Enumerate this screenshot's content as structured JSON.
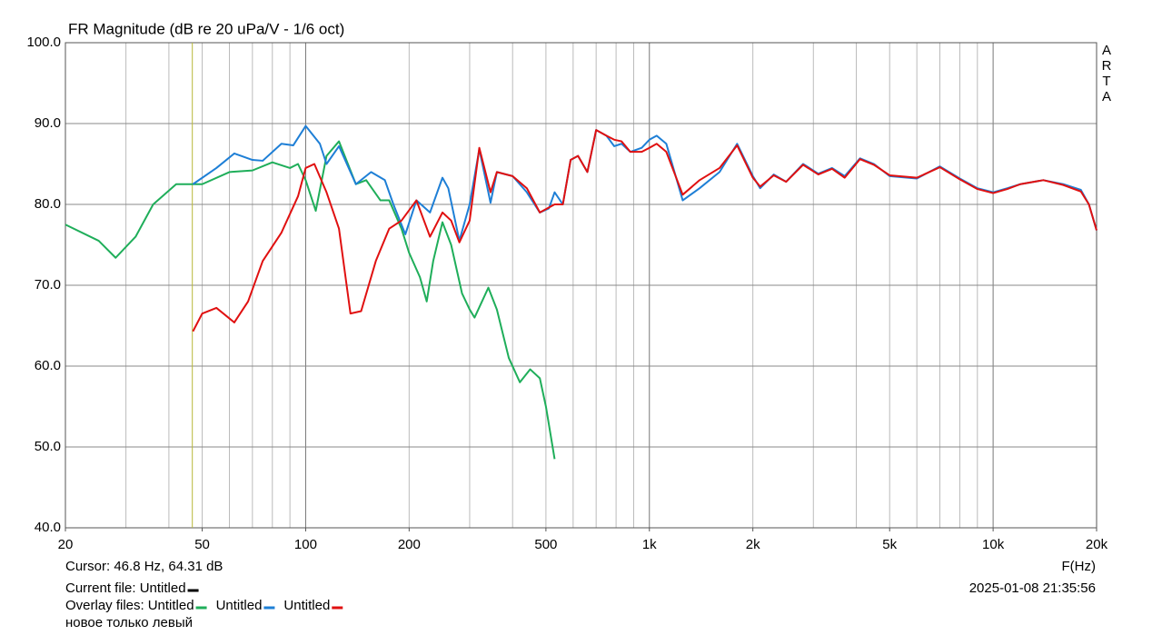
{
  "chart_data": {
    "type": "line",
    "title": "FR Magnitude (dB re 20 uPa/V - 1/6 oct)",
    "x_label": "F(Hz)",
    "side_label": [
      "A",
      "R",
      "T",
      "A"
    ],
    "xscale": "log",
    "grid": true,
    "xlim": [
      20,
      20000
    ],
    "ylim": [
      40,
      100
    ],
    "xticks": [
      20,
      50,
      100,
      200,
      500,
      {
        "value": 1000,
        "label": "1k"
      },
      {
        "value": 2000,
        "label": "2k"
      },
      {
        "value": 5000,
        "label": "5k"
      },
      {
        "value": 10000,
        "label": "10k"
      },
      {
        "value": 20000,
        "label": "20k"
      }
    ],
    "yticks": [
      {
        "value": 40,
        "label": "40.0"
      },
      {
        "value": 50,
        "label": "50.0"
      },
      {
        "value": 60,
        "label": "60.0"
      },
      {
        "value": 70,
        "label": "70.0"
      },
      {
        "value": 80,
        "label": "80.0"
      },
      {
        "value": 90,
        "label": "90.0"
      },
      {
        "value": 100,
        "label": "100.0"
      }
    ],
    "cursor": {
      "label": "Cursor: 46.8 Hz, 64.31 dB",
      "x": 46.8,
      "color": "#b8b83a"
    },
    "current_file": {
      "label": "Current file: Untitled",
      "color": "#000000"
    },
    "overlay_label": "Overlay files:",
    "note": "новое только левый",
    "timestamp": "2025-01-08  21:35:56",
    "series": [
      {
        "name": "Untitled",
        "color": "#1fae5a",
        "x": [
          20,
          25,
          28,
          32,
          36,
          42,
          50,
          60,
          70,
          80,
          90,
          95,
          100,
          107,
          115,
          125,
          140,
          150,
          165,
          175,
          190,
          200,
          215,
          225,
          235,
          250,
          265,
          285,
          300,
          310,
          340,
          360,
          390,
          420,
          450,
          480,
          500,
          530
        ],
        "values": [
          77.5,
          75.5,
          73.4,
          76,
          80,
          82.5,
          82.5,
          84,
          84.2,
          85.2,
          84.5,
          85,
          83,
          79.2,
          86,
          87.8,
          82.5,
          83,
          80.5,
          80.5,
          77,
          74,
          71,
          68,
          73,
          77.8,
          75,
          69,
          67,
          66,
          69.7,
          67,
          61,
          58,
          59.6,
          58.5,
          55,
          48.5
        ]
      },
      {
        "name": "Untitled",
        "color": "#1e7fd6",
        "x": [
          47,
          55,
          62,
          70,
          75,
          85,
          92,
          100,
          110,
          115,
          125,
          140,
          155,
          170,
          180,
          195,
          210,
          230,
          250,
          260,
          280,
          300,
          320,
          345,
          360,
          400,
          440,
          480,
          510,
          530,
          560,
          590,
          620,
          660,
          700,
          750,
          790,
          830,
          880,
          950,
          1000,
          1050,
          1120,
          1250,
          1400,
          1600,
          1800,
          2000,
          2100,
          2300,
          2500,
          2800,
          3100,
          3400,
          3700,
          4100,
          4500,
          5000,
          6000,
          7000,
          8000,
          9000,
          10000,
          11000,
          12000,
          14000,
          16000,
          18000,
          19000,
          20000
        ],
        "values": [
          82.5,
          84.5,
          86.3,
          85.5,
          85.4,
          87.5,
          87.3,
          89.7,
          87.5,
          85,
          87.2,
          82.5,
          84,
          83,
          80,
          76.3,
          80.5,
          79,
          83.3,
          82,
          75.5,
          80,
          86.8,
          80.2,
          84,
          83.5,
          81.5,
          79,
          79.5,
          81.5,
          80,
          85.5,
          86,
          84,
          89.2,
          88.5,
          87.2,
          87.5,
          86.5,
          87,
          88,
          88.5,
          87.5,
          80.5,
          82,
          84,
          87.5,
          83.5,
          82,
          83.7,
          82.8,
          85,
          83.8,
          84.5,
          83.5,
          85.7,
          85,
          83.5,
          83.2,
          84.7,
          83.2,
          82,
          81.5,
          82,
          82.5,
          83,
          82.5,
          81.8,
          80,
          76.8
        ]
      },
      {
        "name": "Untitled",
        "color": "#e01010",
        "x": [
          47,
          50,
          55,
          62,
          68,
          75,
          85,
          95,
          100,
          106,
          115,
          125,
          135,
          145,
          160,
          175,
          190,
          210,
          230,
          250,
          265,
          280,
          300,
          320,
          345,
          360,
          400,
          440,
          480,
          530,
          560,
          590,
          620,
          660,
          700,
          750,
          790,
          830,
          880,
          950,
          1000,
          1050,
          1120,
          1250,
          1400,
          1600,
          1800,
          2000,
          2100,
          2300,
          2500,
          2800,
          3100,
          3400,
          3700,
          4100,
          4500,
          5000,
          6000,
          7000,
          8000,
          9000,
          10000,
          11000,
          12000,
          14000,
          16000,
          18000,
          19000,
          20000
        ],
        "values": [
          64.3,
          66.5,
          67.2,
          65.4,
          68,
          73,
          76.5,
          81,
          84.5,
          85,
          81.5,
          77,
          66.5,
          66.8,
          73,
          77,
          78,
          80.5,
          76,
          79,
          78,
          75.3,
          78,
          87,
          81.5,
          84,
          83.5,
          82,
          79,
          80,
          80,
          85.5,
          86,
          84,
          89.2,
          88.5,
          88,
          87.8,
          86.5,
          86.5,
          87,
          87.5,
          86.5,
          81.2,
          83,
          84.5,
          87.3,
          83.3,
          82.2,
          83.6,
          82.8,
          84.9,
          83.7,
          84.4,
          83.3,
          85.6,
          84.9,
          83.6,
          83.3,
          84.6,
          83.1,
          81.9,
          81.4,
          81.9,
          82.5,
          83,
          82.4,
          81.6,
          80,
          76.8
        ]
      }
    ]
  }
}
